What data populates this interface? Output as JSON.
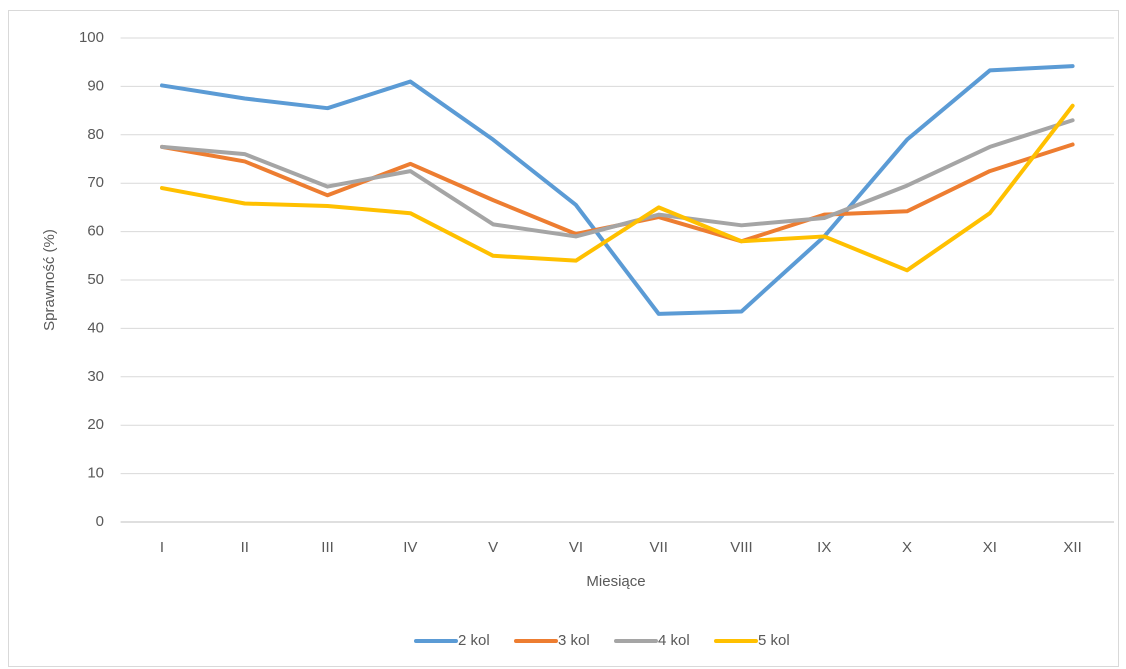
{
  "chart_data": {
    "type": "line",
    "x_label": "Miesiące",
    "y_label": "Sprawność (%)",
    "categories": [
      "I",
      "II",
      "III",
      "IV",
      "V",
      "VI",
      "VII",
      "VIII",
      "IX",
      "X",
      "XI",
      "XII"
    ],
    "series": [
      {
        "name": "2 kol",
        "color": "#5b9bd5",
        "values": [
          90.2,
          87.5,
          85.5,
          91,
          79,
          65.5,
          43,
          43.5,
          59,
          79,
          93.3,
          94.2
        ]
      },
      {
        "name": "3 kol",
        "color": "#ed7d31",
        "values": [
          77.5,
          74.5,
          67.5,
          74,
          66.5,
          59.5,
          63,
          58,
          63.5,
          64.2,
          72.5,
          78
        ]
      },
      {
        "name": "4 kol",
        "color": "#a5a5a5",
        "values": [
          77.5,
          76,
          69.3,
          72.5,
          61.5,
          59,
          63.5,
          61.3,
          62.8,
          69.5,
          77.5,
          83
        ]
      },
      {
        "name": "5 kol",
        "color": "#ffc000",
        "values": [
          69,
          65.8,
          65.3,
          63.8,
          55,
          54,
          65,
          58,
          59,
          52,
          63.8,
          86
        ]
      }
    ],
    "ylim": [
      0,
      100
    ],
    "yticks": [
      0,
      10,
      20,
      30,
      40,
      50,
      60,
      70,
      80,
      90,
      100
    ],
    "grid": true,
    "legend": "bottom"
  }
}
